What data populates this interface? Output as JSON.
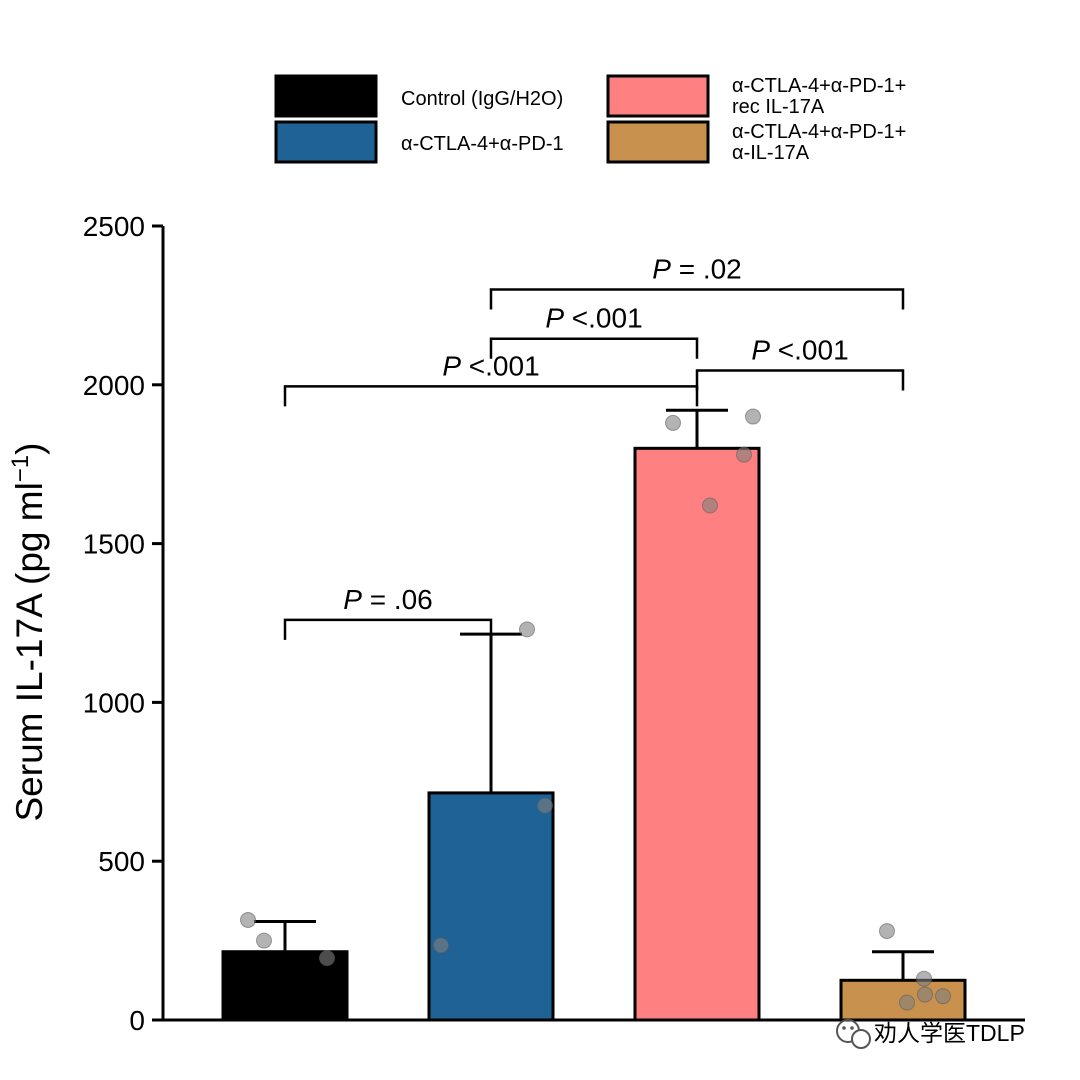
{
  "chart_data": {
    "type": "bar",
    "ylabel_main": "Serum IL-17A (pg ml",
    "ylabel_sup": "−1",
    "ylabel_close": ")",
    "ylim": [
      0,
      2500
    ],
    "yticks": [
      "0",
      "500",
      "1000",
      "1500",
      "2000",
      "2500"
    ],
    "ytick_values": [
      0,
      500,
      1000,
      1500,
      2000,
      2500
    ],
    "groups": [
      {
        "name": "Control (IgG/H2O)",
        "value": 215,
        "error": 95,
        "color": "#000000",
        "points": [
          315,
          250,
          195
        ]
      },
      {
        "name": "α-CTLA-4+α-PD-1",
        "value": 715,
        "error": 500,
        "color": "#1f6396",
        "points": [
          1230,
          675,
          235
        ]
      },
      {
        "name": "α-CTLA-4+α-PD-1+ rec IL-17A",
        "value": 1800,
        "error": 120,
        "color": "#ff8080",
        "points": [
          1880,
          1900,
          1780,
          1620
        ]
      },
      {
        "name": "α-CTLA-4+α-PD-1+ α-IL-17A",
        "value": 125,
        "error": 90,
        "color": "#c8914d",
        "points": [
          280,
          130,
          55,
          75,
          80
        ]
      }
    ],
    "legend": [
      {
        "lines": [
          "Control (IgG/H2O)"
        ],
        "color": "#000000"
      },
      {
        "lines": [
          "α-CTLA-4+α-PD-1"
        ],
        "color": "#1f6396"
      },
      {
        "lines": [
          "α-CTLA-4+α-PD-1+",
          "rec IL-17A"
        ],
        "color": "#ff8080"
      },
      {
        "lines": [
          "α-CTLA-4+α-PD-1+",
          "α-IL-17A"
        ],
        "color": "#c8914d"
      }
    ],
    "comparisons": [
      {
        "from": 0,
        "to": 1,
        "level": 1260,
        "label_p": "P",
        "label_rest": " = .06"
      },
      {
        "from": 0,
        "to": 2,
        "level": 1995,
        "label_p": "P",
        "label_rest": " <.001"
      },
      {
        "from": 1,
        "to": 2,
        "level": 2145,
        "label_p": "P",
        "label_rest": " <.001"
      },
      {
        "from": 2,
        "to": 3,
        "level": 2045,
        "label_p": "P",
        "label_rest": " <.001"
      },
      {
        "from": 1,
        "to": 3,
        "level": 2300,
        "label_p": "P",
        "label_rest": " = .02"
      }
    ]
  },
  "watermark": {
    "icon": "wechat-icon",
    "text": "劝人学医TDLP"
  }
}
